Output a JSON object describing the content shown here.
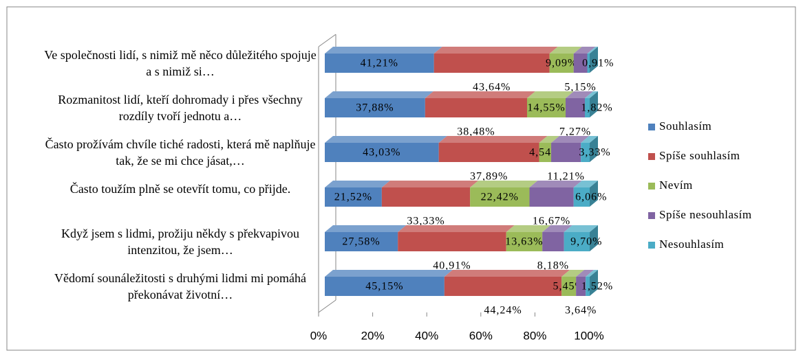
{
  "chart_data": {
    "type": "bar",
    "orientation": "horizontal",
    "stacked": true,
    "categories": [
      "Ve společnosti lidí, s nimiž mě něco důležitého spojuje a s nimiž si…",
      "Rozmanitost lidí, kteří dohromady i přes všechny rozdíly tvoří jednotu a…",
      "Často prožívám chvíle tiché radosti, která mě naplňuje tak, že se mi chce jásat,…",
      "Často toužím plně se otevřít tomu, co přijde.",
      "Když jsem s lidmi, prožiju někdy s překvapivou intenzitou, že jsem…",
      "Vědomí sounáležitosti s druhými lidmi mi pomáhá překonávat životní…"
    ],
    "series": [
      {
        "name": "Souhlasím",
        "color": "#4f81bd",
        "values": [
          41.21,
          37.88,
          43.03,
          21.52,
          27.58,
          45.15
        ],
        "value_labels": [
          "41,21%",
          "37,88%",
          "43,03%",
          "21,52%",
          "27,58%",
          "45,15%"
        ]
      },
      {
        "name": "Spíše souhlasím",
        "color": "#c0504d",
        "values": [
          43.64,
          38.48,
          37.89,
          33.33,
          40.91,
          44.24
        ],
        "value_labels": [
          "43,64%",
          "38,48%",
          "37,89%",
          "33,33%",
          "40,91%",
          "44,24%"
        ]
      },
      {
        "name": "Nevím",
        "color": "#9bbb59",
        "values": [
          9.09,
          14.55,
          4.54,
          22.42,
          13.63,
          5.45
        ],
        "value_labels": [
          "9,09%",
          "14,55%",
          "4,54%",
          "22,42%",
          "13,63%",
          "5,45%"
        ]
      },
      {
        "name": "Spíše nesouhlasím",
        "color": "#8064a2",
        "values": [
          5.15,
          7.27,
          11.21,
          16.67,
          8.18,
          3.64
        ],
        "value_labels": [
          "5,15%",
          "7,27%",
          "11,21%",
          "16,67%",
          "8,18%",
          "3,64%"
        ]
      },
      {
        "name": "Nesouhlasím",
        "color": "#4bacc6",
        "values": [
          0.91,
          1.82,
          3.33,
          6.06,
          9.7,
          1.52
        ],
        "value_labels": [
          "0,91%",
          "1,82%",
          "3,33%",
          "6,06%",
          "9,70%",
          "1,52%"
        ]
      }
    ],
    "xlim": [
      0,
      100
    ],
    "xticks": [
      {
        "value": 0,
        "label": "0%"
      },
      {
        "value": 20,
        "label": "20%"
      },
      {
        "value": 40,
        "label": "40%"
      },
      {
        "value": 60,
        "label": "60%"
      },
      {
        "value": 80,
        "label": "80%"
      },
      {
        "value": 100,
        "label": "100%"
      }
    ],
    "legend": "right"
  }
}
